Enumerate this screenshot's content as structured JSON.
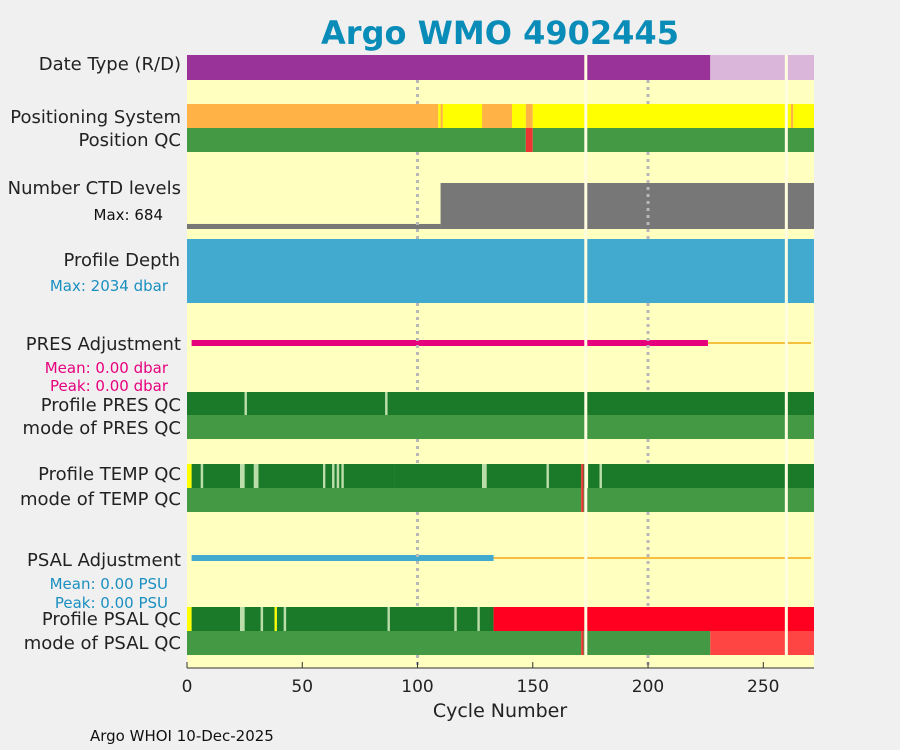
{
  "chart_data": {
    "type": "bar",
    "title": "Argo WMO 4902445",
    "xlabel": "Cycle Number",
    "xlim": [
      0,
      272
    ],
    "xticks": [
      0,
      50,
      100,
      150,
      200,
      250
    ],
    "xtick_labels": [
      "0",
      "50",
      "100",
      "150",
      "200",
      "250"
    ],
    "grid_x": [
      100,
      200
    ],
    "footer": "Argo WHOI 10-Dec-2025",
    "colors": {
      "background": "#ffffc0",
      "figure": "#f0f0f0",
      "realtime": "#993399",
      "delayed": "#dbb6db",
      "gps": "#ffff00",
      "argos": "#ffb347",
      "qc_good": "#1a7a2a",
      "qc_mode_good": "#449944",
      "qc_probably_good": "#bbddaa",
      "qc_bad": "#ff0020",
      "qc_mode_bad": "#ff4444",
      "qc_red": "#ee3333",
      "ctd_levels": "#777777",
      "profile_depth": "#42aacf",
      "pres_adjust": "#e6007e",
      "psal_adjust": "#42aacf",
      "adjust_line": "#f5c040",
      "missing": "#ffffff",
      "gridline": "#b8b8b8"
    },
    "rows": [
      {
        "label": "Date Type (R/D)"
      },
      {
        "label": "Positioning System"
      },
      {
        "label": "Position QC"
      },
      {
        "label": "Number CTD levels"
      },
      {
        "label": "Profile Depth"
      },
      {
        "label": "PRES Adjustment"
      },
      {
        "label": "Profile PRES QC"
      },
      {
        "label": "mode of PRES QC"
      },
      {
        "label": "Profile TEMP QC"
      },
      {
        "label": "mode of TEMP QC"
      },
      {
        "label": "PSAL Adjustment"
      },
      {
        "label": "Profile PSAL QC"
      },
      {
        "label": "mode of PSAL QC"
      }
    ],
    "annotations": {
      "ctd_max": "Max: 684",
      "depth_max": "Max: 2034 dbar",
      "pres_mean": "Mean: 0.00 dbar",
      "pres_peak": "Peak: 0.00 dbar",
      "psal_mean": "Mean: 0.00 PSU",
      "psal_peak": "Peak: 0.00 PSU"
    },
    "missing_cycles": [
      173,
      260
    ],
    "series": {
      "date_type": [
        {
          "start": 0,
          "end": 227,
          "code": "realtime"
        },
        {
          "start": 227,
          "end": 272,
          "code": "delayed"
        }
      ],
      "positioning_system": [
        {
          "start": 0,
          "end": 109,
          "code": "argos"
        },
        {
          "start": 109,
          "end": 110,
          "code": "gps"
        },
        {
          "start": 110,
          "end": 111,
          "code": "argos"
        },
        {
          "start": 111,
          "end": 128,
          "code": "gps"
        },
        {
          "start": 128,
          "end": 141,
          "code": "argos"
        },
        {
          "start": 141,
          "end": 147,
          "code": "gps"
        },
        {
          "start": 147,
          "end": 150,
          "code": "argos"
        },
        {
          "start": 150,
          "end": 262,
          "code": "gps"
        },
        {
          "start": 262,
          "end": 263,
          "code": "argos"
        },
        {
          "start": 263,
          "end": 272,
          "code": "gps"
        }
      ],
      "position_qc": [
        {
          "start": 0,
          "end": 147,
          "code": "qc_mode_good"
        },
        {
          "start": 147,
          "end": 150,
          "code": "qc_red"
        },
        {
          "start": 150,
          "end": 272,
          "code": "qc_mode_good"
        }
      ],
      "ctd_levels": [
        {
          "start": 0,
          "end": 110,
          "value": 75
        },
        {
          "start": 110,
          "end": 272,
          "value": 684
        }
      ],
      "profile_depth_dbar": [
        {
          "start": 0,
          "end": 272,
          "value": 2034
        }
      ],
      "pres_adjustment": {
        "start": 2,
        "end": 226,
        "value": 0.0
      },
      "pres_adjustment_trailing": {
        "start": 226,
        "end": 272
      },
      "profile_pres_qc": [
        {
          "start": 0,
          "end": 25,
          "code": "qc_good"
        },
        {
          "start": 25,
          "end": 26,
          "code": "qc_probably_good"
        },
        {
          "start": 26,
          "end": 86,
          "code": "qc_good"
        },
        {
          "start": 86,
          "end": 87,
          "code": "qc_probably_good"
        },
        {
          "start": 87,
          "end": 272,
          "code": "qc_good"
        }
      ],
      "mode_pres_qc": [
        {
          "start": 0,
          "end": 272,
          "code": "qc_mode_good"
        }
      ],
      "profile_temp_qc": [
        {
          "start": 0,
          "end": 2,
          "code": "gps"
        },
        {
          "start": 2,
          "end": 6,
          "code": "qc_good"
        },
        {
          "start": 6,
          "end": 7,
          "code": "qc_probably_good"
        },
        {
          "start": 7,
          "end": 23,
          "code": "qc_good"
        },
        {
          "start": 23,
          "end": 25,
          "code": "qc_probably_good"
        },
        {
          "start": 25,
          "end": 29,
          "code": "qc_good"
        },
        {
          "start": 29,
          "end": 31,
          "code": "qc_probably_good"
        },
        {
          "start": 31,
          "end": 59,
          "code": "qc_good"
        },
        {
          "start": 59,
          "end": 60,
          "code": "qc_probably_good"
        },
        {
          "start": 60,
          "end": 63,
          "code": "qc_good"
        },
        {
          "start": 63,
          "end": 64,
          "code": "qc_probably_good"
        },
        {
          "start": 64,
          "end": 65,
          "code": "qc_good"
        },
        {
          "start": 65,
          "end": 66,
          "code": "qc_probably_good"
        },
        {
          "start": 66,
          "end": 67,
          "code": "qc_good"
        },
        {
          "start": 67,
          "end": 68,
          "code": "qc_probably_good"
        },
        {
          "start": 68,
          "end": 90,
          "code": "qc_good"
        },
        {
          "start": 90,
          "end": 128,
          "code": "qc_good"
        },
        {
          "start": 128,
          "end": 130,
          "code": "qc_probably_good"
        },
        {
          "start": 130,
          "end": 156,
          "code": "qc_good"
        },
        {
          "start": 156,
          "end": 157,
          "code": "qc_probably_good"
        },
        {
          "start": 157,
          "end": 171,
          "code": "qc_good"
        },
        {
          "start": 171,
          "end": 172,
          "code": "qc_red"
        },
        {
          "start": 172,
          "end": 173,
          "code": "qc_good"
        },
        {
          "start": 174,
          "end": 179,
          "code": "qc_good"
        },
        {
          "start": 179,
          "end": 180,
          "code": "qc_probably_good"
        },
        {
          "start": 180,
          "end": 272,
          "code": "qc_good"
        }
      ],
      "mode_temp_qc": [
        {
          "start": 0,
          "end": 171,
          "code": "qc_mode_good"
        },
        {
          "start": 171,
          "end": 172,
          "code": "qc_red"
        },
        {
          "start": 172,
          "end": 272,
          "code": "qc_mode_good"
        }
      ],
      "psal_adjustment": {
        "start": 2,
        "end": 133,
        "value": 0.0
      },
      "psal_adjustment_trailing": {
        "start": 133,
        "end": 272
      },
      "profile_psal_qc": [
        {
          "start": 0,
          "end": 2,
          "code": "gps"
        },
        {
          "start": 2,
          "end": 23,
          "code": "qc_good"
        },
        {
          "start": 23,
          "end": 25,
          "code": "qc_probably_good"
        },
        {
          "start": 25,
          "end": 32,
          "code": "qc_good"
        },
        {
          "start": 32,
          "end": 33,
          "code": "qc_probably_good"
        },
        {
          "start": 33,
          "end": 38,
          "code": "qc_good"
        },
        {
          "start": 38,
          "end": 39,
          "code": "gps"
        },
        {
          "start": 39,
          "end": 42,
          "code": "qc_good"
        },
        {
          "start": 42,
          "end": 43,
          "code": "qc_probably_good"
        },
        {
          "start": 43,
          "end": 87,
          "code": "qc_good"
        },
        {
          "start": 87,
          "end": 88,
          "code": "qc_probably_good"
        },
        {
          "start": 88,
          "end": 116,
          "code": "qc_good"
        },
        {
          "start": 116,
          "end": 117,
          "code": "qc_probably_good"
        },
        {
          "start": 117,
          "end": 126,
          "code": "qc_good"
        },
        {
          "start": 126,
          "end": 127,
          "code": "qc_probably_good"
        },
        {
          "start": 127,
          "end": 133,
          "code": "qc_good"
        },
        {
          "start": 133,
          "end": 272,
          "code": "qc_bad"
        }
      ],
      "mode_psal_qc": [
        {
          "start": 0,
          "end": 171,
          "code": "qc_mode_good"
        },
        {
          "start": 171,
          "end": 172,
          "code": "qc_red"
        },
        {
          "start": 172,
          "end": 227,
          "code": "qc_mode_good"
        },
        {
          "start": 227,
          "end": 272,
          "code": "qc_mode_bad"
        }
      ]
    }
  }
}
